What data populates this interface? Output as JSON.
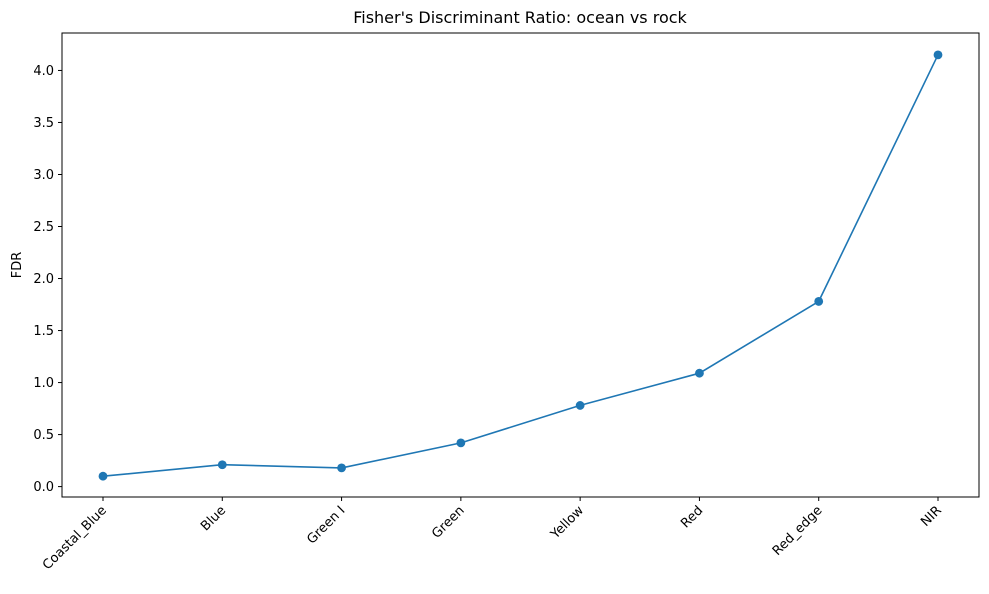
{
  "chart_data": {
    "type": "line",
    "title": "Fisher's Discriminant Ratio: ocean vs rock",
    "xlabel": "",
    "ylabel": "FDR",
    "categories": [
      "Coastal_Blue",
      "Blue",
      "Green I",
      "Green",
      "Yellow",
      "Red",
      "Red_edge",
      "NIR"
    ],
    "series": [
      {
        "values": [
          0.1,
          0.21,
          0.18,
          0.42,
          0.78,
          1.09,
          1.78,
          4.15
        ]
      }
    ],
    "y_ticks": [
      "0.0",
      "0.5",
      "1.0",
      "1.5",
      "2.0",
      "2.5",
      "3.0",
      "3.5",
      "4.0"
    ],
    "ylim": [
      -0.1,
      4.36
    ],
    "grid": false,
    "legend": "none",
    "x_tick_rotation": 45,
    "line_color": "#1f77b4",
    "marker": "circle"
  }
}
